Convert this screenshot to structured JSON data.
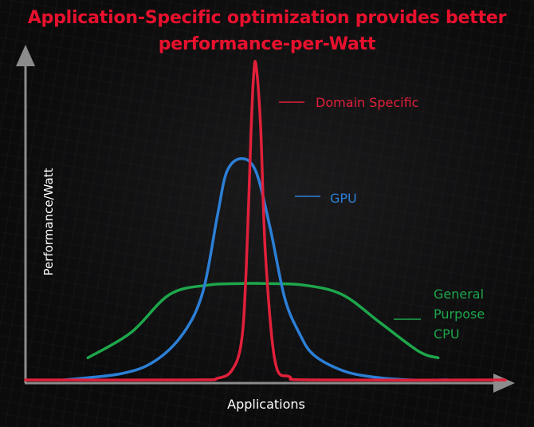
{
  "title_lines": [
    "Application-Specific optimization provides better",
    "performance-per-Watt"
  ],
  "colors": {
    "title": "#e8112d",
    "axis": "#8c8c8c",
    "axis_text": "#ffffff"
  },
  "chart_data": {
    "type": "line",
    "title": "Application-Specific optimization provides better performance-per-Watt",
    "xlabel": "Applications",
    "ylabel": "Performance/Watt",
    "grid": false,
    "ylim": [
      0,
      1
    ],
    "x_range": [
      0,
      1
    ],
    "tick_labels": "none",
    "series": [
      {
        "name": "Domain Specific",
        "label_lines": [
          "Domain Specific"
        ],
        "color": "#e0203a",
        "shape": "narrow peak",
        "x": [
          0.0,
          0.35,
          0.4,
          0.43,
          0.45,
          0.46,
          0.47,
          0.475,
          0.48,
          0.49,
          0.5,
          0.52,
          0.55,
          0.6,
          1.0
        ],
        "y": [
          0.0,
          0.0,
          0.005,
          0.03,
          0.12,
          0.35,
          0.78,
          0.95,
          1.0,
          0.8,
          0.4,
          0.06,
          0.01,
          0.0,
          0.0
        ]
      },
      {
        "name": "GPU",
        "label_lines": [
          "GPU"
        ],
        "color": "#2c7fd6",
        "shape": "medium peak",
        "x": [
          0.08,
          0.2,
          0.27,
          0.33,
          0.37,
          0.4,
          0.42,
          0.45,
          0.48,
          0.51,
          0.54,
          0.57,
          0.6,
          0.66,
          0.72,
          0.8,
          0.88
        ],
        "y": [
          0.0,
          0.02,
          0.06,
          0.15,
          0.28,
          0.52,
          0.66,
          0.7,
          0.66,
          0.48,
          0.26,
          0.15,
          0.08,
          0.03,
          0.01,
          0.0,
          0.0
        ]
      },
      {
        "name": "General Purpose CPU",
        "label_lines": [
          "General",
          "Purpose",
          "CPU"
        ],
        "color": "#1ea64b",
        "shape": "broad plateau",
        "x": [
          0.13,
          0.22,
          0.3,
          0.38,
          0.45,
          0.5,
          0.58,
          0.66,
          0.74,
          0.82,
          0.86
        ],
        "y": [
          0.07,
          0.15,
          0.27,
          0.3,
          0.305,
          0.305,
          0.3,
          0.27,
          0.18,
          0.09,
          0.07
        ]
      }
    ]
  }
}
